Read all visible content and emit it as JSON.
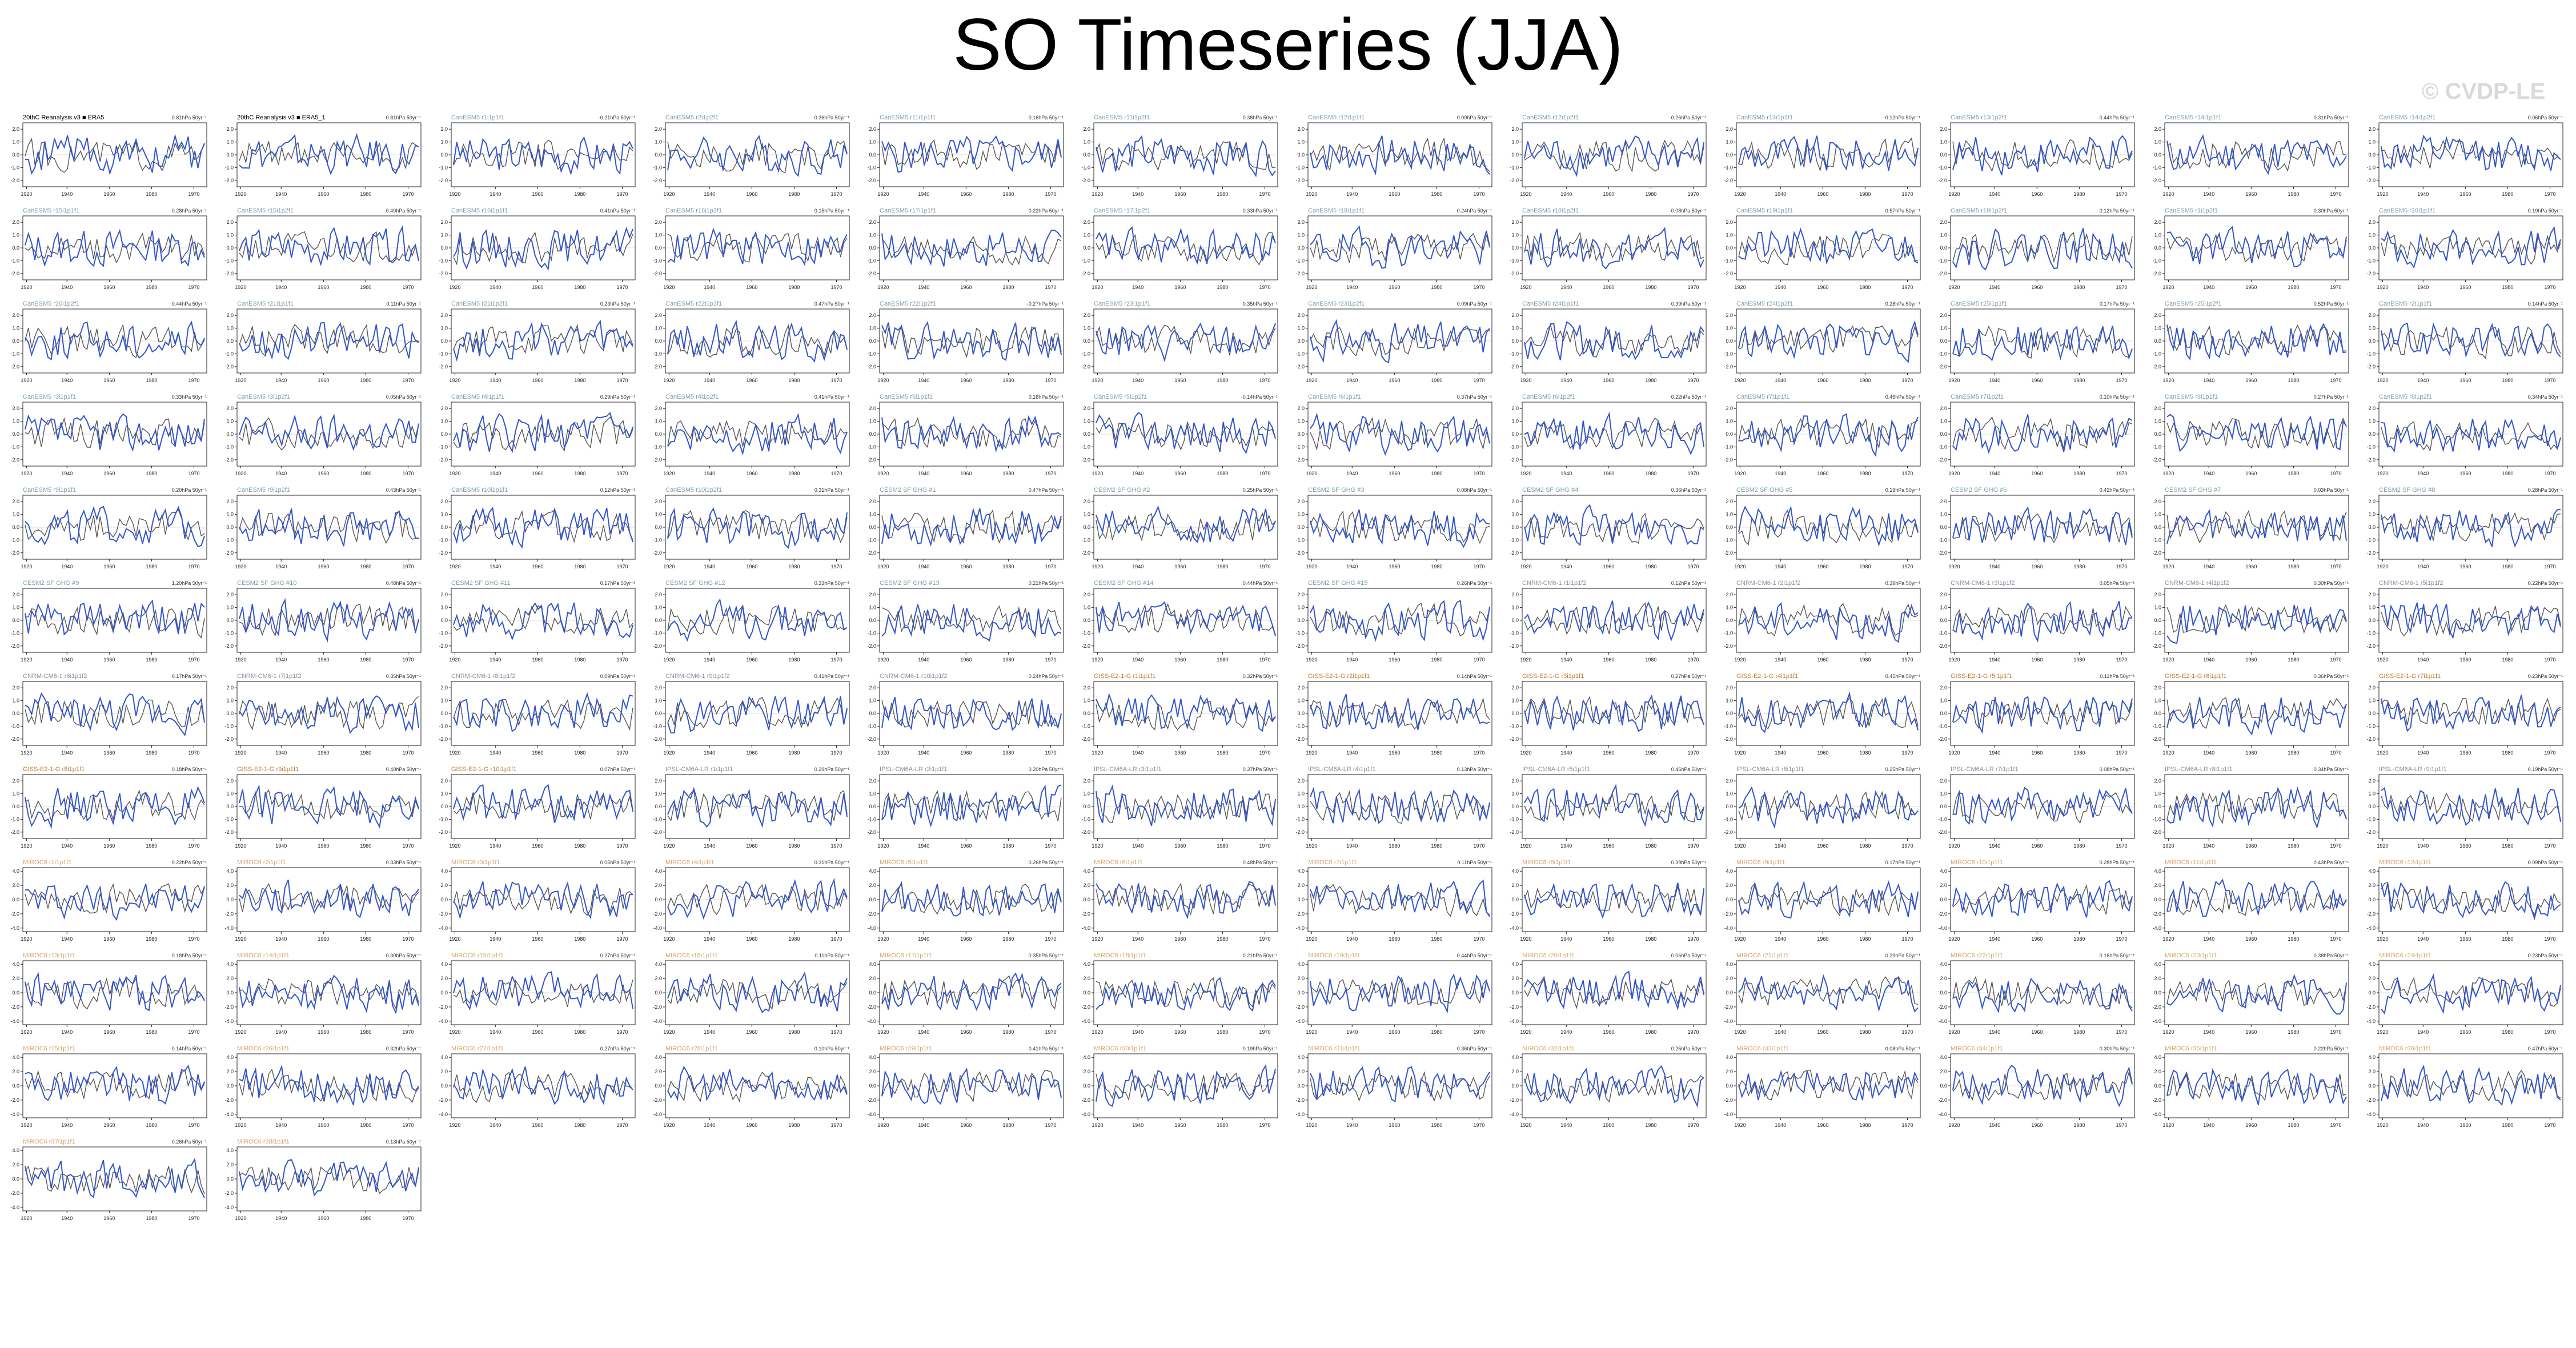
{
  "title": "SO Timeseries (JJA)",
  "watermark": "© CVDP-LE",
  "colors": {
    "obs_line": "#555555",
    "model_line": "#3355cc",
    "label_cesm2": "#3a8fb7",
    "label_cesm2_sf": "#7aa0a8",
    "label_canesm": "#7f9fb0",
    "label_giss": "#c27a2c",
    "label_ipsl": "#8a8fa0",
    "label_miroc": "#d9a46a"
  },
  "chart_data": {
    "type": "line",
    "x_ticks": [
      "1920",
      "1940",
      "1960",
      "1980",
      "1970"
    ],
    "y_ticks_small": [
      "2.0",
      "1.0",
      "0.0",
      "-1.0",
      "-2.0"
    ],
    "y_ticks_large": [
      "4.0",
      "2.0",
      "0.0",
      "-2.0",
      "-4.0"
    ],
    "ylim_small": [
      -2.5,
      2.5
    ],
    "ylim_large": [
      -4.5,
      4.5
    ],
    "obs_trend": "0.81hPa 50yr⁻¹",
    "panels": [
      {
        "label": "20thC Reanalysis v3 ■ ERA5",
        "group": "obs",
        "trend": "0.81hPa 50yr⁻¹",
        "seed": 1
      },
      {
        "label": "20thC Reanalysis v3 ■ ERA5_1",
        "group": "obs",
        "trend": "0.81hPa 50yr⁻¹",
        "seed": 2
      },
      {
        "label": "CanESM5 r1i1p1f1",
        "group": "canesm",
        "trend": "-0.21hPa 50yr⁻¹",
        "seed": 3
      },
      {
        "label": "CanESM5 r2i1p2f1",
        "group": "canesm",
        "trend": "0.36hPa 50yr⁻¹",
        "seed": 4
      },
      {
        "label": "CanESM5 r11i1p1f1",
        "group": "canesm",
        "trend": "0.16hPa 50yr⁻¹",
        "seed": 5
      },
      {
        "label": "CanESM5 r11i1p2f1",
        "group": "canesm",
        "trend": "0.38hPa 50yr⁻¹",
        "seed": 6
      },
      {
        "label": "CanESM5 r12i1p1f1",
        "group": "canesm",
        "trend": "0.09hPa 50yr⁻¹",
        "seed": 7
      },
      {
        "label": "CanESM5 r12i1p2f1",
        "group": "canesm",
        "trend": "0.26hPa 50yr⁻¹",
        "seed": 8
      },
      {
        "label": "CanESM5 r13i1p1f1",
        "group": "canesm",
        "trend": "-0.12hPa 50yr⁻¹",
        "seed": 9
      },
      {
        "label": "CanESM5 r13i1p2f1",
        "group": "canesm",
        "trend": "0.44hPa 50yr⁻¹",
        "seed": 10
      },
      {
        "label": "CanESM5 r14i1p1f1",
        "group": "canesm",
        "trend": "0.31hPa 50yr⁻¹",
        "seed": 11
      },
      {
        "label": "CanESM5 r14i1p2f1",
        "group": "canesm",
        "trend": "0.06hPa 50yr⁻¹",
        "seed": 12
      },
      {
        "label": "CanESM5 r15i1p1f1",
        "group": "canesm",
        "trend": "0.28hPa 50yr⁻¹",
        "seed": 13
      },
      {
        "label": "CanESM5 r15i1p2f1",
        "group": "canesm",
        "trend": "0.49hPa 50yr⁻¹",
        "seed": 14
      },
      {
        "label": "CanESM5 r16i1p1f1",
        "group": "canesm",
        "trend": "0.41hPa 50yr⁻¹",
        "seed": 15
      },
      {
        "label": "CanESM5 r16i1p2f1",
        "group": "canesm",
        "trend": "0.15hPa 50yr⁻¹",
        "seed": 16
      },
      {
        "label": "CanESM5 r17i1p1f1",
        "group": "canesm",
        "trend": "0.22hPa 50yr⁻¹",
        "seed": 17
      },
      {
        "label": "CanESM5 r17i1p2f1",
        "group": "canesm",
        "trend": "0.33hPa 50yr⁻¹",
        "seed": 18
      },
      {
        "label": "CanESM5 r18i1p1f1",
        "group": "canesm",
        "trend": "0.24hPa 50yr⁻¹",
        "seed": 19
      },
      {
        "label": "CanESM5 r18i1p2f1",
        "group": "canesm",
        "trend": "-0.08hPa 50yr⁻¹",
        "seed": 20
      },
      {
        "label": "CanESM5 r19i1p1f1",
        "group": "canesm",
        "trend": "0.57hPa 50yr⁻¹",
        "seed": 21
      },
      {
        "label": "CanESM5 r19i1p2f1",
        "group": "canesm",
        "trend": "0.12hPa 50yr⁻¹",
        "seed": 22
      },
      {
        "label": "CanESM5 r1i1p2f1",
        "group": "canesm",
        "trend": "0.30hPa 50yr⁻¹",
        "seed": 23
      },
      {
        "label": "CanESM5 r20i1p1f1",
        "group": "canesm",
        "trend": "0.19hPa 50yr⁻¹",
        "seed": 24
      },
      {
        "label": "CanESM5 r20i1p2f1",
        "group": "canesm",
        "trend": "0.44hPa 50yr⁻¹",
        "seed": 25
      },
      {
        "label": "CanESM5 r21i1p1f1",
        "group": "canesm",
        "trend": "0.11hPa 50yr⁻¹",
        "seed": 26
      },
      {
        "label": "CanESM5 r21i1p2f1",
        "group": "canesm",
        "trend": "0.23hPa 50yr⁻¹",
        "seed": 27
      },
      {
        "label": "CanESM5 r22i1p1f1",
        "group": "canesm",
        "trend": "0.47hPa 50yr⁻¹",
        "seed": 28
      },
      {
        "label": "CanESM5 r22i1p2f1",
        "group": "canesm",
        "trend": "-0.27hPa 50yr⁻¹",
        "seed": 29
      },
      {
        "label": "CanESM5 r23i1p1f1",
        "group": "canesm",
        "trend": "0.35hPa 50yr⁻¹",
        "seed": 30
      },
      {
        "label": "CanESM5 r23i1p2f1",
        "group": "canesm",
        "trend": "0.09hPa 50yr⁻¹",
        "seed": 31
      },
      {
        "label": "CanESM5 r24i1p1f1",
        "group": "canesm",
        "trend": "0.39hPa 50yr⁻¹",
        "seed": 32
      },
      {
        "label": "CanESM5 r24i1p2f1",
        "group": "canesm",
        "trend": "0.28hPa 50yr⁻¹",
        "seed": 33
      },
      {
        "label": "CanESM5 r25i1p1f1",
        "group": "canesm",
        "trend": "0.17hPa 50yr⁻¹",
        "seed": 34
      },
      {
        "label": "CanESM5 r25i1p2f1",
        "group": "canesm",
        "trend": "0.52hPa 50yr⁻¹",
        "seed": 35
      },
      {
        "label": "CanESM5 r2i1p1f1",
        "group": "canesm",
        "trend": "0.14hPa 50yr⁻¹",
        "seed": 36
      },
      {
        "label": "CanESM5 r3i1p1f1",
        "group": "canesm",
        "trend": "0.33hPa 50yr⁻¹",
        "seed": 37
      },
      {
        "label": "CanESM5 r3i1p2f1",
        "group": "canesm",
        "trend": "0.05hPa 50yr⁻¹",
        "seed": 38
      },
      {
        "label": "CanESM5 r4i1p1f1",
        "group": "canesm",
        "trend": "0.29hPa 50yr⁻¹",
        "seed": 39
      },
      {
        "label": "CanESM5 r4i1p2f1",
        "group": "canesm",
        "trend": "0.41hPa 50yr⁻¹",
        "seed": 40
      },
      {
        "label": "CanESM5 r5i1p1f1",
        "group": "canesm",
        "trend": "0.18hPa 50yr⁻¹",
        "seed": 41
      },
      {
        "label": "CanESM5 r5i1p2f1",
        "group": "canesm",
        "trend": "-0.14hPa 50yr⁻¹",
        "seed": 42
      },
      {
        "label": "CanESM5 r6i1p1f1",
        "group": "canesm",
        "trend": "0.37hPa 50yr⁻¹",
        "seed": 43
      },
      {
        "label": "CanESM5 r6i1p2f1",
        "group": "canesm",
        "trend": "0.22hPa 50yr⁻¹",
        "seed": 44
      },
      {
        "label": "CanESM5 r7i1p1f1",
        "group": "canesm",
        "trend": "0.46hPa 50yr⁻¹",
        "seed": 45
      },
      {
        "label": "CanESM5 r7i1p2f1",
        "group": "canesm",
        "trend": "0.10hPa 50yr⁻¹",
        "seed": 46
      },
      {
        "label": "CanESM5 r8i1p1f1",
        "group": "canesm",
        "trend": "0.27hPa 50yr⁻¹",
        "seed": 47
      },
      {
        "label": "CanESM5 r8i1p2f1",
        "group": "canesm",
        "trend": "0.34hPa 50yr⁻¹",
        "seed": 48
      },
      {
        "label": "CanESM5 r9i1p1f1",
        "group": "canesm",
        "trend": "0.20hPa 50yr⁻¹",
        "seed": 49
      },
      {
        "label": "CanESM5 r9i1p2f1",
        "group": "canesm",
        "trend": "0.43hPa 50yr⁻¹",
        "seed": 50
      },
      {
        "label": "CanESM5 r10i1p1f1",
        "group": "canesm",
        "trend": "0.12hPa 50yr⁻¹",
        "seed": 51
      },
      {
        "label": "CanESM5 r10i1p2f1",
        "group": "canesm",
        "trend": "0.31hPa 50yr⁻¹",
        "seed": 52
      },
      {
        "label": "CESM2 SF GHG #1",
        "group": "cesm2sf",
        "trend": "0.47hPa 50yr⁻¹",
        "seed": 53
      },
      {
        "label": "CESM2 SF GHG #2",
        "group": "cesm2sf",
        "trend": "0.25hPa 50yr⁻¹",
        "seed": 54
      },
      {
        "label": "CESM2 SF GHG #3",
        "group": "cesm2sf",
        "trend": "0.08hPa 50yr⁻¹",
        "seed": 55
      },
      {
        "label": "CESM2 SF GHG #4",
        "group": "cesm2sf",
        "trend": "0.36hPa 50yr⁻¹",
        "seed": 56
      },
      {
        "label": "CESM2 SF GHG #5",
        "group": "cesm2sf",
        "trend": "0.19hPa 50yr⁻¹",
        "seed": 57
      },
      {
        "label": "CESM2 SF GHG #6",
        "group": "cesm2sf",
        "trend": "0.42hPa 50yr⁻¹",
        "seed": 58
      },
      {
        "label": "CESM2 SF GHG #7",
        "group": "cesm2sf",
        "trend": "0.03hPa 50yr⁻¹",
        "seed": 59
      },
      {
        "label": "CESM2 SF GHG #8",
        "group": "cesm2sf",
        "trend": "0.28hPa 50yr⁻¹",
        "seed": 60
      },
      {
        "label": "CESM2 SF GHG #9",
        "group": "cesm2sf",
        "trend": "1.20hPa 50yr⁻¹",
        "seed": 61
      },
      {
        "label": "CESM2 SF GHG #10",
        "group": "cesm2sf",
        "trend": "0.48hPa 50yr⁻¹",
        "seed": 62
      },
      {
        "label": "CESM2 SF GHG #11",
        "group": "cesm2sf",
        "trend": "0.17hPa 50yr⁻¹",
        "seed": 63
      },
      {
        "label": "CESM2 SF GHG #12",
        "group": "cesm2sf",
        "trend": "0.33hPa 50yr⁻¹",
        "seed": 64
      },
      {
        "label": "CESM2 SF GHG #13",
        "group": "cesm2sf",
        "trend": "0.21hPa 50yr⁻¹",
        "seed": 65
      },
      {
        "label": "CESM2 SF GHG #14",
        "group": "cesm2sf",
        "trend": "0.44hPa 50yr⁻¹",
        "seed": 66
      },
      {
        "label": "CESM2 SF GHG #15",
        "group": "cesm2sf",
        "trend": "0.26hPa 50yr⁻¹",
        "seed": 67
      },
      {
        "label": "CNRM-CM6-1 r1i1p1f2",
        "group": "ipsl",
        "trend": "0.12hPa 50yr⁻¹",
        "seed": 68
      },
      {
        "label": "CNRM-CM6-1 r2i1p1f2",
        "group": "ipsl",
        "trend": "0.39hPa 50yr⁻¹",
        "seed": 69
      },
      {
        "label": "CNRM-CM6-1 r3i1p1f2",
        "group": "ipsl",
        "trend": "0.05hPa 50yr⁻¹",
        "seed": 70
      },
      {
        "label": "CNRM-CM6-1 r4i1p1f2",
        "group": "ipsl",
        "trend": "0.30hPa 50yr⁻¹",
        "seed": 71
      },
      {
        "label": "CNRM-CM6-1 r5i1p1f2",
        "group": "ipsl",
        "trend": "0.22hPa 50yr⁻¹",
        "seed": 72
      },
      {
        "label": "CNRM-CM6-1 r6i1p1f2",
        "group": "ipsl",
        "trend": "0.17hPa 50yr⁻¹",
        "seed": 73
      },
      {
        "label": "CNRM-CM6-1 r7i1p1f2",
        "group": "ipsl",
        "trend": "0.35hPa 50yr⁻¹",
        "seed": 74
      },
      {
        "label": "CNRM-CM6-1 r8i1p1f2",
        "group": "ipsl",
        "trend": "0.09hPa 50yr⁻¹",
        "seed": 75
      },
      {
        "label": "CNRM-CM6-1 r9i1p1f2",
        "group": "ipsl",
        "trend": "0.41hPa 50yr⁻¹",
        "seed": 76
      },
      {
        "label": "CNRM-CM6-1 r10i1p1f2",
        "group": "ipsl",
        "trend": "0.24hPa 50yr⁻¹",
        "seed": 77
      },
      {
        "label": "GISS-E2-1-G r1i1p1f1",
        "group": "giss",
        "trend": "0.32hPa 50yr⁻¹",
        "seed": 78
      },
      {
        "label": "GISS-E2-1-G r2i1p1f1",
        "group": "giss",
        "trend": "0.14hPa 50yr⁻¹",
        "seed": 79
      },
      {
        "label": "GISS-E2-1-G r3i1p1f1",
        "group": "giss",
        "trend": "0.27hPa 50yr⁻¹",
        "seed": 80
      },
      {
        "label": "GISS-E2-1-G r4i1p1f1",
        "group": "giss",
        "trend": "0.45hPa 50yr⁻¹",
        "seed": 81
      },
      {
        "label": "GISS-E2-1-G r5i1p1f1",
        "group": "giss",
        "trend": "0.11hPa 50yr⁻¹",
        "seed": 82
      },
      {
        "label": "GISS-E2-1-G r6i1p1f1",
        "group": "giss",
        "trend": "0.36hPa 50yr⁻¹",
        "seed": 83
      },
      {
        "label": "GISS-E2-1-G r7i1p1f1",
        "group": "giss",
        "trend": "0.23hPa 50yr⁻¹",
        "seed": 84
      },
      {
        "label": "GISS-E2-1-G r8i1p1f1",
        "group": "giss",
        "trend": "0.18hPa 50yr⁻¹",
        "seed": 85
      },
      {
        "label": "GISS-E2-1-G r9i1p1f1",
        "group": "giss",
        "trend": "0.40hPa 50yr⁻¹",
        "seed": 86
      },
      {
        "label": "GISS-E2-1-G r10i1p1f1",
        "group": "giss",
        "trend": "0.07hPa 50yr⁻¹",
        "seed": 87
      },
      {
        "label": "IPSL-CM6A-LR r1i1p1f1",
        "group": "ipsl",
        "trend": "0.29hPa 50yr⁻¹",
        "seed": 88
      },
      {
        "label": "IPSL-CM6A-LR r2i1p1f1",
        "group": "ipsl",
        "trend": "0.20hPa 50yr⁻¹",
        "seed": 89
      },
      {
        "label": "IPSL-CM6A-LR r3i1p1f1",
        "group": "ipsl",
        "trend": "0.37hPa 50yr⁻¹",
        "seed": 90
      },
      {
        "label": "IPSL-CM6A-LR r4i1p1f1",
        "group": "ipsl",
        "trend": "0.13hPa 50yr⁻¹",
        "seed": 91
      },
      {
        "label": "IPSL-CM6A-LR r5i1p1f1",
        "group": "ipsl",
        "trend": "0.46hPa 50yr⁻¹",
        "seed": 92
      },
      {
        "label": "IPSL-CM6A-LR r6i1p1f1",
        "group": "ipsl",
        "trend": "0.25hPa 50yr⁻¹",
        "seed": 93
      },
      {
        "label": "IPSL-CM6A-LR r7i1p1f1",
        "group": "ipsl",
        "trend": "0.08hPa 50yr⁻¹",
        "seed": 94
      },
      {
        "label": "IPSL-CM6A-LR r8i1p1f1",
        "group": "ipsl",
        "trend": "0.34hPa 50yr⁻¹",
        "seed": 95
      },
      {
        "label": "IPSL-CM6A-LR r9i1p1f1",
        "group": "ipsl",
        "trend": "0.19hPa 50yr⁻¹",
        "seed": 96
      },
      {
        "label": "MIROC6 r1i1p1f1",
        "group": "miroc",
        "trend": "0.22hPa 50yr⁻¹",
        "seed": 97
      },
      {
        "label": "MIROC6 r2i1p1f1",
        "group": "miroc",
        "trend": "0.33hPa 50yr⁻¹",
        "seed": 98
      },
      {
        "label": "MIROC6 r3i1p1f1",
        "group": "miroc",
        "trend": "0.05hPa 50yr⁻¹",
        "seed": 99
      },
      {
        "label": "MIROC6 r4i1p1f1",
        "group": "miroc",
        "trend": "0.31hPa 50yr⁻¹",
        "seed": 100
      },
      {
        "label": "MIROC6 r5i1p1f1",
        "group": "miroc",
        "trend": "0.26hPa 50yr⁻¹",
        "seed": 101
      },
      {
        "label": "MIROC6 r6i1p1f1",
        "group": "miroc",
        "trend": "0.48hPa 50yr⁻¹",
        "seed": 102
      },
      {
        "label": "MIROC6 r7i1p1f1",
        "group": "miroc",
        "trend": "0.11hPa 50yr⁻¹",
        "seed": 103
      },
      {
        "label": "MIROC6 r8i1p1f1",
        "group": "miroc",
        "trend": "0.39hPa 50yr⁻¹",
        "seed": 104
      },
      {
        "label": "MIROC6 r9i1p1f1",
        "group": "miroc",
        "trend": "0.17hPa 50yr⁻¹",
        "seed": 105
      },
      {
        "label": "MIROC6 r10i1p1f1",
        "group": "miroc",
        "trend": "0.28hPa 50yr⁻¹",
        "seed": 106
      },
      {
        "label": "MIROC6 r11i1p1f1",
        "group": "miroc",
        "trend": "0.43hPa 50yr⁻¹",
        "seed": 107
      },
      {
        "label": "MIROC6 r12i1p1f1",
        "group": "miroc",
        "trend": "0.09hPa 50yr⁻¹",
        "seed": 108
      },
      {
        "label": "MIROC6 r13i1p1f1",
        "group": "miroc",
        "trend": "0.18hPa 50yr⁻¹",
        "seed": 109
      },
      {
        "label": "MIROC6 r14i1p1f1",
        "group": "miroc",
        "trend": "0.30hPa 50yr⁻¹",
        "seed": 110
      },
      {
        "label": "MIROC6 r15i1p1f1",
        "group": "miroc",
        "trend": "0.27hPa 50yr⁻¹",
        "seed": 111
      },
      {
        "label": "MIROC6 r16i1p1f1",
        "group": "miroc",
        "trend": "0.11hPa 50yr⁻¹",
        "seed": 112
      },
      {
        "label": "MIROC6 r17i1p1f1",
        "group": "miroc",
        "trend": "0.35hPa 50yr⁻¹",
        "seed": 113
      },
      {
        "label": "MIROC6 r18i1p1f1",
        "group": "miroc",
        "trend": "0.21hPa 50yr⁻¹",
        "seed": 114
      },
      {
        "label": "MIROC6 r19i1p1f1",
        "group": "miroc",
        "trend": "0.44hPa 50yr⁻¹",
        "seed": 115
      },
      {
        "label": "MIROC6 r20i1p1f1",
        "group": "miroc",
        "trend": "0.06hPa 50yr⁻¹",
        "seed": 116
      },
      {
        "label": "MIROC6 r21i1p1f1",
        "group": "miroc",
        "trend": "0.29hPa 50yr⁻¹",
        "seed": 117
      },
      {
        "label": "MIROC6 r22i1p1f1",
        "group": "miroc",
        "trend": "0.16hPa 50yr⁻¹",
        "seed": 118
      },
      {
        "label": "MIROC6 r23i1p1f1",
        "group": "miroc",
        "trend": "0.38hPa 50yr⁻¹",
        "seed": 119
      },
      {
        "label": "MIROC6 r24i1p1f1",
        "group": "miroc",
        "trend": "0.23hPa 50yr⁻¹",
        "seed": 120
      },
      {
        "label": "MIROC6 r25i1p1f1",
        "group": "miroc",
        "trend": "0.14hPa 50yr⁻¹",
        "seed": 121
      },
      {
        "label": "MIROC6 r26i1p1f1",
        "group": "miroc",
        "trend": "0.32hPa 50yr⁻¹",
        "seed": 122
      },
      {
        "label": "MIROC6 r27i1p1f1",
        "group": "miroc",
        "trend": "0.27hPa 50yr⁻¹",
        "seed": 123
      },
      {
        "label": "MIROC6 r28i1p1f1",
        "group": "miroc",
        "trend": "0.10hPa 50yr⁻¹",
        "seed": 124
      },
      {
        "label": "MIROC6 r29i1p1f1",
        "group": "miroc",
        "trend": "0.41hPa 50yr⁻¹",
        "seed": 125
      },
      {
        "label": "MIROC6 r30i1p1f1",
        "group": "miroc",
        "trend": "0.19hPa 50yr⁻¹",
        "seed": 126
      },
      {
        "label": "MIROC6 r31i1p1f1",
        "group": "miroc",
        "trend": "0.36hPa 50yr⁻¹",
        "seed": 127
      },
      {
        "label": "MIROC6 r32i1p1f1",
        "group": "miroc",
        "trend": "0.25hPa 50yr⁻¹",
        "seed": 128
      },
      {
        "label": "MIROC6 r33i1p1f1",
        "group": "miroc",
        "trend": "0.08hPa 50yr⁻¹",
        "seed": 129
      },
      {
        "label": "MIROC6 r34i1p1f1",
        "group": "miroc",
        "trend": "0.30hPa 50yr⁻¹",
        "seed": 130
      },
      {
        "label": "MIROC6 r35i1p1f1",
        "group": "miroc",
        "trend": "0.22hPa 50yr⁻¹",
        "seed": 131
      },
      {
        "label": "MIROC6 r36i1p1f1",
        "group": "miroc",
        "trend": "0.47hPa 50yr⁻¹",
        "seed": 132
      },
      {
        "label": "MIROC6 r37i1p1f1",
        "group": "miroc",
        "trend": "0.26hPa 50yr⁻¹",
        "seed": 133
      },
      {
        "label": "MIROC6 r38i1p1f1",
        "group": "miroc",
        "trend": "0.13hPa 50yr⁻¹",
        "seed": 134
      }
    ]
  }
}
